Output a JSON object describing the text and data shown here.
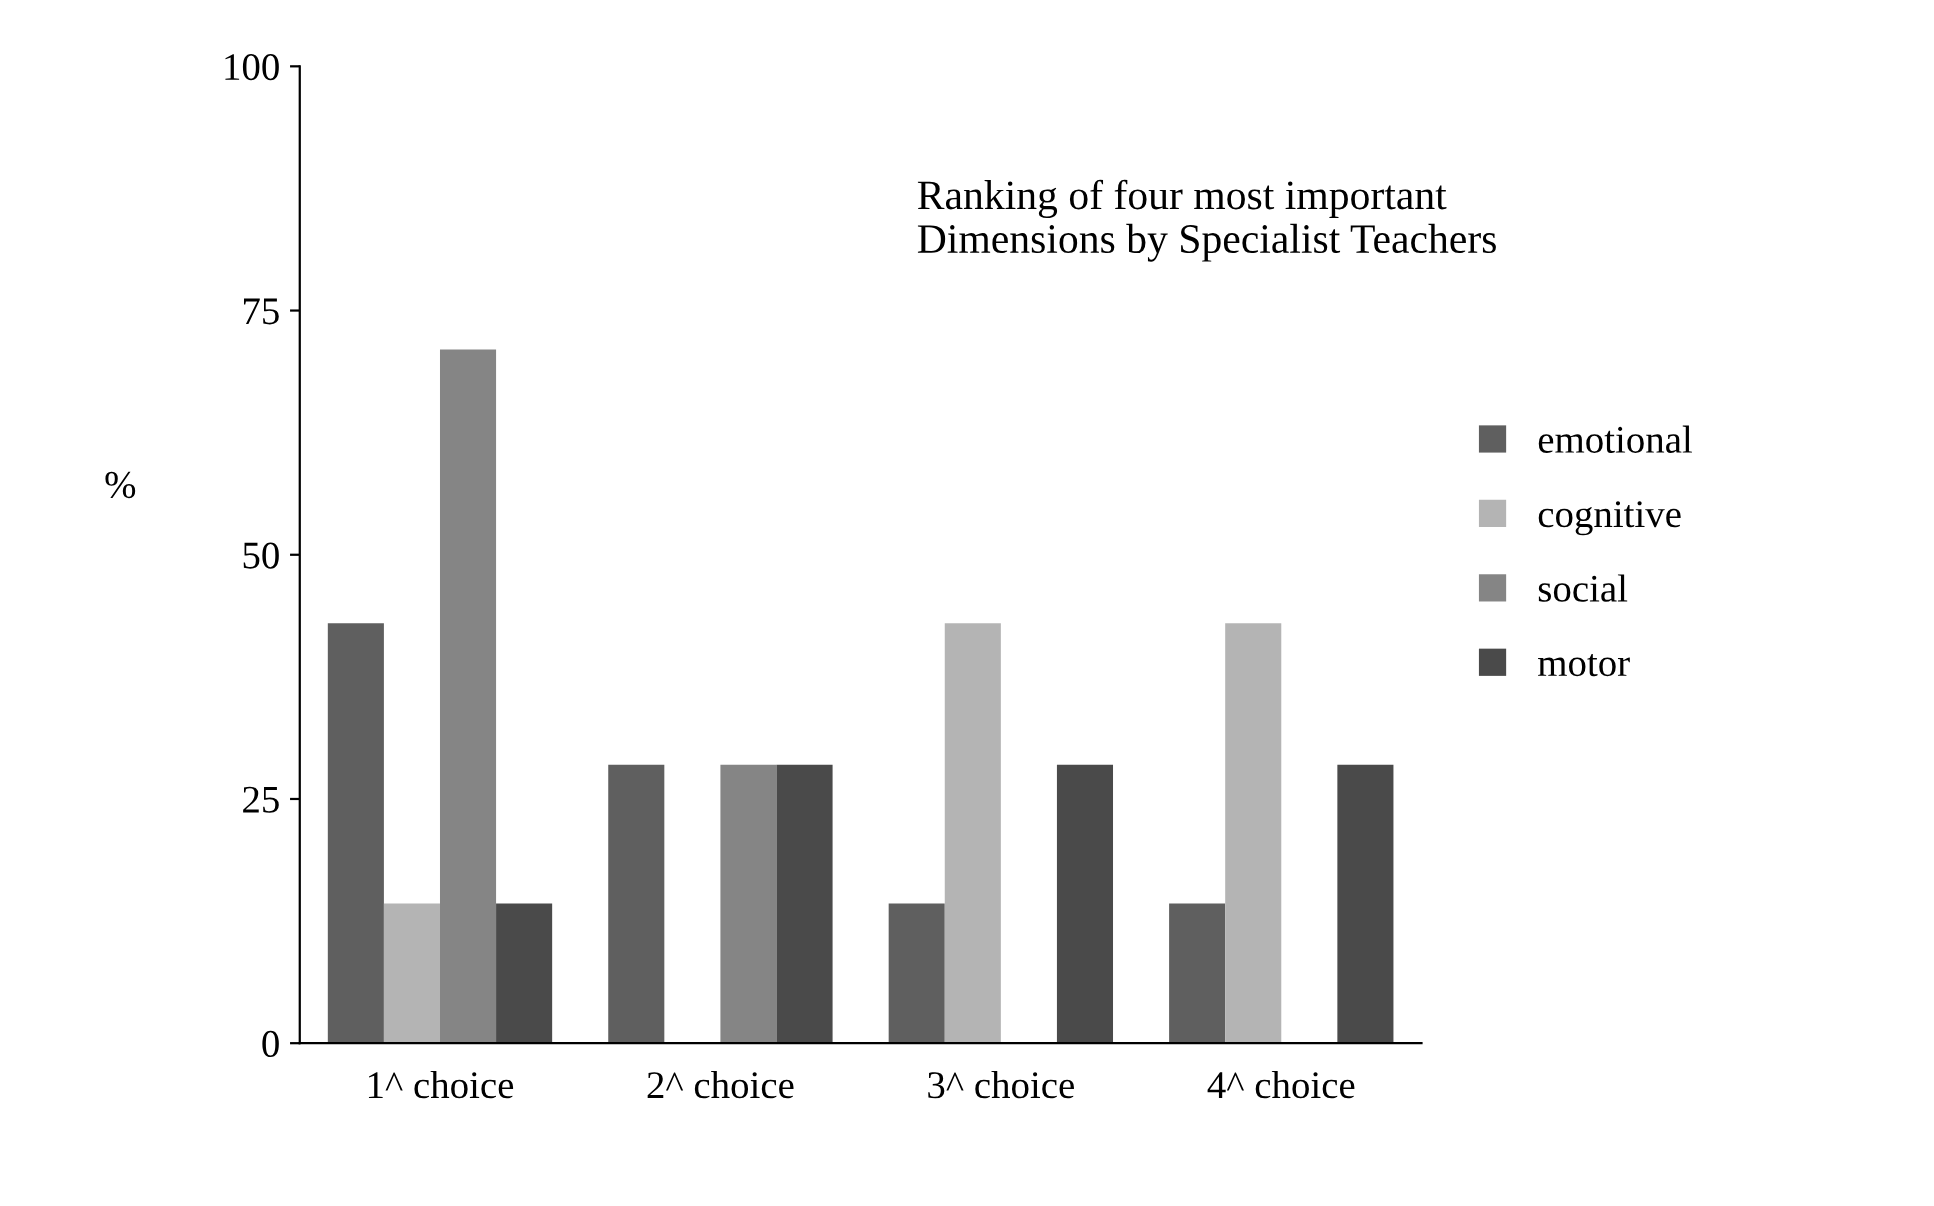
{
  "chart_data": {
    "type": "bar",
    "title": "Ranking of four most important\nDimensions by Specialist Teachers",
    "ylabel": "%",
    "categories": [
      "1^ choice",
      "2^ choice",
      "3^ choice",
      "4^ choice"
    ],
    "series": [
      {
        "name": "emotional",
        "color": "#5f5f5f",
        "values": [
          43,
          28.5,
          14.3,
          14.3
        ]
      },
      {
        "name": "cognitive",
        "color": "#b4b4b4",
        "values": [
          14.3,
          0,
          43,
          43
        ]
      },
      {
        "name": "social",
        "color": "#858585",
        "values": [
          71,
          28.5,
          0,
          0
        ]
      },
      {
        "name": "motor",
        "color": "#4a4a4a",
        "values": [
          14.3,
          28.5,
          28.5,
          28.5
        ]
      }
    ],
    "ylim": [
      0,
      100
    ],
    "yticks": [
      0,
      25,
      50,
      75,
      100
    ],
    "grid": false,
    "legend": "right"
  }
}
